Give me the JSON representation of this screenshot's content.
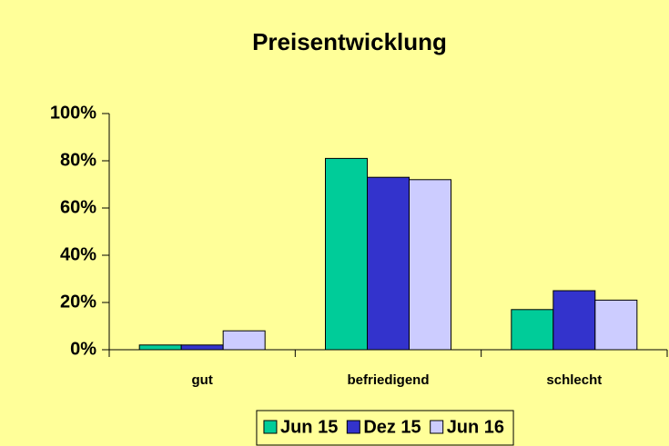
{
  "chart_data": {
    "type": "bar",
    "title": "Preisentwicklung",
    "categories": [
      "gut",
      "befriedigend",
      "schlecht"
    ],
    "series": [
      {
        "name": "Jun 15",
        "color": "#00cc99",
        "values": [
          2,
          81,
          17
        ]
      },
      {
        "name": "Dez 15",
        "color": "#3333cc",
        "values": [
          2,
          73,
          25
        ]
      },
      {
        "name": "Jun 16",
        "color": "#ccccff",
        "values": [
          8,
          72,
          21
        ]
      }
    ],
    "ylim": [
      0,
      100
    ],
    "yticks": [
      {
        "value": 0,
        "label": "0%"
      },
      {
        "value": 20,
        "label": "20%"
      },
      {
        "value": 40,
        "label": "40%"
      },
      {
        "value": 60,
        "label": "60%"
      },
      {
        "value": 80,
        "label": "80%"
      },
      {
        "value": 100,
        "label": "100%"
      }
    ],
    "legend": "bottom"
  }
}
